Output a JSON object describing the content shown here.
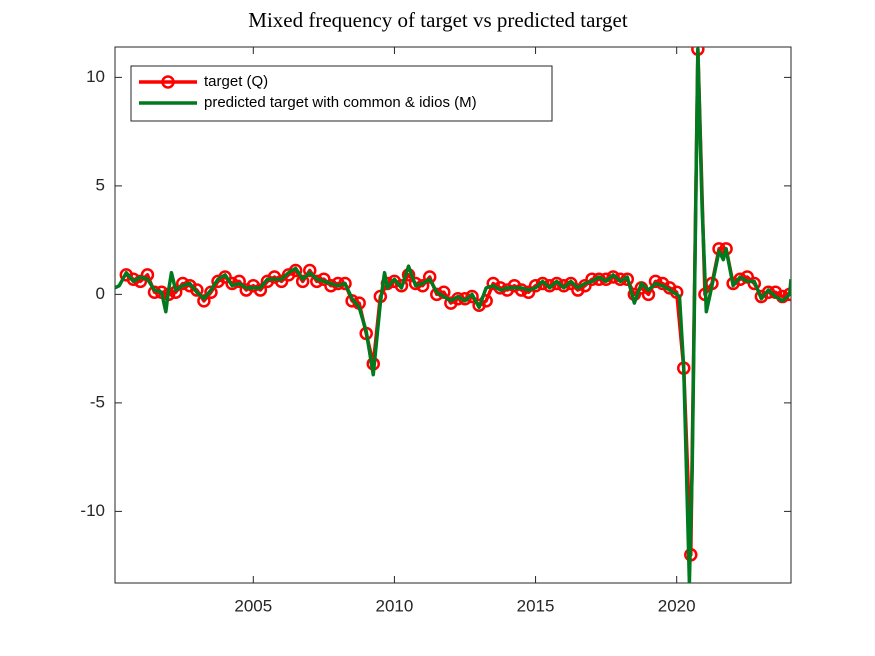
{
  "chart_data": {
    "type": "line",
    "title": "Mixed frequency of target vs predicted target",
    "xlim": [
      2000.1,
      2024.05
    ],
    "ylim": [
      -13.3,
      11.4
    ],
    "xticks": [
      2005,
      2010,
      2015,
      2020
    ],
    "yticks": [
      -10,
      -5,
      0,
      5,
      10
    ],
    "grid": false,
    "legend": "northwest",
    "series": [
      {
        "name": "target (Q)",
        "color": "#ff0000",
        "marker": "circle",
        "x": [
          2000.5,
          2000.75,
          2001,
          2001.25,
          2001.5,
          2001.75,
          2002,
          2002.25,
          2002.5,
          2002.75,
          2003,
          2003.25,
          2003.5,
          2003.75,
          2004,
          2004.25,
          2004.5,
          2004.75,
          2005,
          2005.25,
          2005.5,
          2005.75,
          2006,
          2006.25,
          2006.5,
          2006.75,
          2007,
          2007.25,
          2007.5,
          2007.75,
          2008,
          2008.25,
          2008.5,
          2008.75,
          2009,
          2009.25,
          2009.5,
          2009.75,
          2010,
          2010.25,
          2010.5,
          2010.75,
          2011,
          2011.25,
          2011.5,
          2011.75,
          2012,
          2012.25,
          2012.5,
          2012.75,
          2013,
          2013.25,
          2013.5,
          2013.75,
          2014,
          2014.25,
          2014.5,
          2014.75,
          2015,
          2015.25,
          2015.5,
          2015.75,
          2016,
          2016.25,
          2016.5,
          2016.75,
          2017,
          2017.25,
          2017.5,
          2017.75,
          2018,
          2018.25,
          2018.5,
          2018.75,
          2019,
          2019.25,
          2019.5,
          2019.75,
          2020,
          2020.25,
          2020.5,
          2020.75,
          2021,
          2021.25,
          2021.5,
          2021.75,
          2022,
          2022.25,
          2022.5,
          2022.75,
          2023,
          2023.25,
          2023.5,
          2023.75,
          2024
        ],
        "values": [
          0.9,
          0.7,
          0.6,
          0.9,
          0.1,
          0.1,
          0.0,
          0.1,
          0.5,
          0.4,
          0.2,
          -0.3,
          0.1,
          0.6,
          0.8,
          0.5,
          0.6,
          0.2,
          0.4,
          0.2,
          0.6,
          0.8,
          0.6,
          0.9,
          1.1,
          0.6,
          1.1,
          0.6,
          0.7,
          0.4,
          0.5,
          0.5,
          -0.3,
          -0.4,
          -1.8,
          -3.2,
          -0.1,
          0.5,
          0.6,
          0.4,
          0.9,
          0.5,
          0.4,
          0.8,
          0.0,
          0.1,
          -0.4,
          -0.2,
          -0.2,
          -0.1,
          -0.5,
          -0.3,
          0.5,
          0.3,
          0.2,
          0.4,
          0.2,
          0.1,
          0.4,
          0.5,
          0.4,
          0.5,
          0.4,
          0.5,
          0.2,
          0.4,
          0.7,
          0.7,
          0.7,
          0.8,
          0.7,
          0.7,
          0.0,
          0.3,
          0.0,
          0.6,
          0.5,
          0.3,
          0.1,
          -3.4,
          -12.0,
          11.3,
          0.0,
          0.5,
          2.1,
          2.1,
          0.5,
          0.7,
          0.8,
          0.5,
          -0.1,
          0.1,
          0.1,
          -0.1,
          0.0
        ]
      },
      {
        "name": "predicted target with common & idios (M)",
        "color": "#007a1f",
        "x": [
          2000.1,
          2000.25,
          2000.5,
          2000.75,
          2001,
          2001.25,
          2001.5,
          2001.75,
          2001.9,
          2002,
          2002.1,
          2002.25,
          2002.5,
          2002.75,
          2003,
          2003.25,
          2003.5,
          2003.75,
          2004,
          2004.25,
          2004.5,
          2004.75,
          2005,
          2005.25,
          2005.5,
          2005.75,
          2006,
          2006.25,
          2006.5,
          2006.75,
          2007,
          2007.25,
          2007.5,
          2007.75,
          2008,
          2008.25,
          2008.5,
          2008.75,
          2009,
          2009.25,
          2009.5,
          2009.65,
          2009.75,
          2010,
          2010.25,
          2010.5,
          2010.75,
          2011,
          2011.25,
          2011.5,
          2011.75,
          2012,
          2012.25,
          2012.5,
          2012.75,
          2013,
          2013.25,
          2013.5,
          2013.75,
          2014,
          2014.25,
          2014.5,
          2014.75,
          2015,
          2015.25,
          2015.5,
          2015.75,
          2016,
          2016.25,
          2016.5,
          2016.75,
          2017,
          2017.25,
          2017.5,
          2017.75,
          2018,
          2018.25,
          2018.5,
          2018.75,
          2019,
          2019.25,
          2019.5,
          2019.75,
          2020,
          2020.1,
          2020.25,
          2020.45,
          2020.55,
          2020.75,
          2020.9,
          2021.05,
          2021.25,
          2021.5,
          2021.65,
          2021.75,
          2022,
          2022.25,
          2022.5,
          2022.75,
          2023,
          2023.25,
          2023.5,
          2023.75,
          2024,
          2024.05
        ],
        "values": [
          0.3,
          0.4,
          1.0,
          0.6,
          0.8,
          0.7,
          0.2,
          0.1,
          -0.8,
          0.2,
          1.0,
          0.2,
          0.4,
          0.5,
          0.1,
          -0.2,
          0.2,
          0.7,
          0.9,
          0.4,
          0.5,
          0.3,
          0.3,
          0.3,
          0.7,
          0.7,
          0.7,
          1.0,
          1.2,
          0.7,
          1.0,
          0.7,
          0.6,
          0.5,
          0.4,
          0.5,
          -0.2,
          -0.6,
          -1.7,
          -3.7,
          -0.4,
          1.0,
          0.3,
          0.7,
          0.3,
          1.3,
          0.4,
          0.5,
          0.7,
          0.1,
          -0.1,
          -0.3,
          -0.1,
          -0.3,
          0.0,
          -0.6,
          0.3,
          0.4,
          0.2,
          0.3,
          0.3,
          0.3,
          0.2,
          0.3,
          0.6,
          0.3,
          0.6,
          0.3,
          0.6,
          0.3,
          0.5,
          0.6,
          0.8,
          0.6,
          0.9,
          0.6,
          0.8,
          -0.4,
          0.5,
          0.2,
          0.5,
          0.4,
          0.2,
          0.0,
          -0.1,
          -3.4,
          -13.3,
          -8.0,
          11.3,
          4.0,
          -0.8,
          0.4,
          2.0,
          1.6,
          2.1,
          0.4,
          0.8,
          0.6,
          0.6,
          -0.2,
          0.2,
          -0.1,
          -0.3,
          0.0,
          0.7
        ]
      }
    ]
  }
}
